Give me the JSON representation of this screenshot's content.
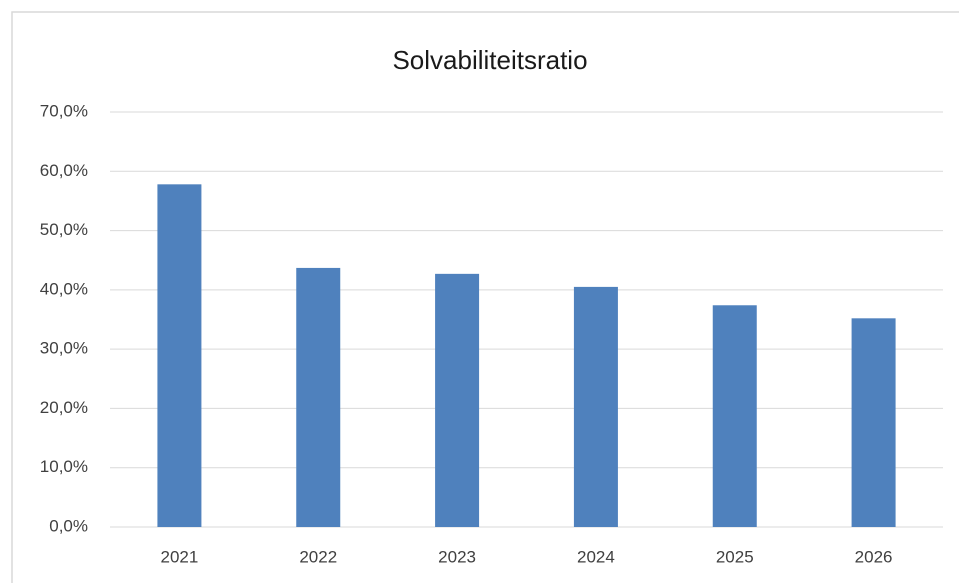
{
  "chart_data": {
    "type": "bar",
    "title": "Solvabiliteitsratio",
    "categories": [
      "2021",
      "2022",
      "2023",
      "2024",
      "2025",
      "2026"
    ],
    "values": [
      57.8,
      43.7,
      42.7,
      40.5,
      37.4,
      35.2
    ],
    "color": "#4f81bd",
    "ylim": [
      0,
      70
    ],
    "yticks": [
      {
        "value": 0,
        "label": "0,0%"
      },
      {
        "value": 10,
        "label": "10,0%"
      },
      {
        "value": 20,
        "label": "20,0%"
      },
      {
        "value": 30,
        "label": "30,0%"
      },
      {
        "value": 40,
        "label": "40,0%"
      },
      {
        "value": 50,
        "label": "50,0%"
      },
      {
        "value": 60,
        "label": "60,0%"
      },
      {
        "value": 70,
        "label": "70,0%"
      }
    ],
    "grid": true
  }
}
